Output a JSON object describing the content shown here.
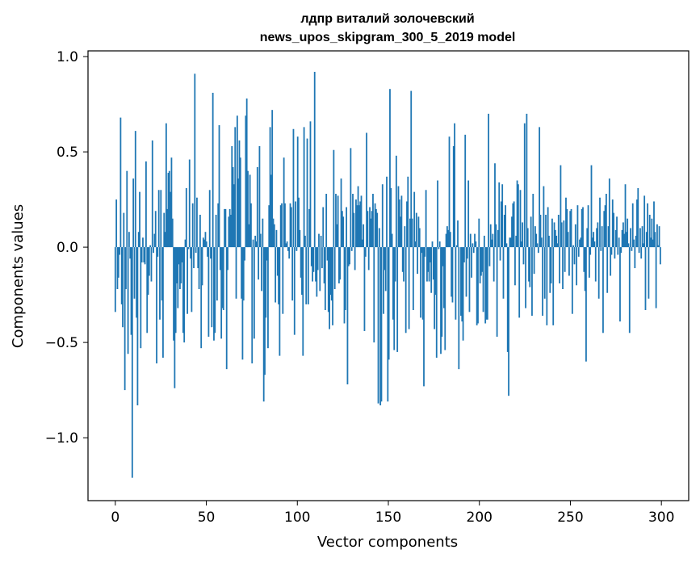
{
  "chart_data": {
    "type": "bar",
    "title_line1": "лдпр виталий золочевский",
    "title_line2": "news_upos_skipgram_300_5_2019 model",
    "xlabel": "Vector components",
    "ylabel": "Components values",
    "xlim": [
      -15,
      315
    ],
    "ylim": [
      -1.33,
      1.03
    ],
    "xticks": [
      0,
      50,
      100,
      150,
      200,
      250,
      300
    ],
    "xtick_labels": [
      "0",
      "50",
      "100",
      "150",
      "200",
      "250",
      "300"
    ],
    "yticks": [
      1.0,
      0.5,
      0.0,
      -0.5,
      -1.0
    ],
    "ytick_labels": [
      "1.0",
      "0.5",
      "0.0",
      "−0.5",
      "−1.0"
    ],
    "bar_color": "#1f77b4",
    "grid": false,
    "values": [
      -0.34,
      0.25,
      -0.22,
      -0.16,
      -0.04,
      0.68,
      -0.3,
      -0.42,
      0.18,
      -0.75,
      -0.22,
      0.4,
      -0.56,
      0.08,
      -0.06,
      -0.46,
      -1.21,
      0.36,
      -0.27,
      0.61,
      -0.37,
      -0.83,
      0.08,
      0.29,
      -0.53,
      -0.08,
      0.05,
      -0.08,
      -0.09,
      0.45,
      -0.45,
      -0.25,
      -0.15,
      0.01,
      -0.18,
      0.56,
      -0.03,
      0.07,
      0.19,
      -0.61,
      -0.05,
      0.3,
      -0.38,
      0.3,
      -0.28,
      -0.58,
      0.18,
      0.08,
      0.65,
      0.2,
      0.39,
      0.4,
      0.29,
      0.47,
      0.15,
      -0.49,
      -0.74,
      -0.45,
      -0.19,
      -0.32,
      -0.09,
      -0.22,
      -0.19,
      -0.08,
      -0.45,
      -0.5,
      0.04,
      0.31,
      -0.35,
      -0.01,
      0.46,
      -0.06,
      -0.34,
      0.23,
      -0.11,
      0.91,
      -0.03,
      0.26,
      -0.11,
      -0.22,
      0.17,
      -0.53,
      -0.2,
      0.05,
      0.04,
      0.08,
      0.03,
      -0.05,
      -0.47,
      0.3,
      -0.06,
      -0.42,
      0.81,
      -0.49,
      -0.45,
      0.17,
      -0.28,
      0.23,
      0.64,
      -0.12,
      -0.48,
      -0.32,
      -0.33,
      0.2,
      0.2,
      -0.64,
      -0.12,
      0.16,
      0.2,
      0.17,
      0.53,
      0.42,
      0.33,
      0.63,
      -0.27,
      0.69,
      0.36,
      0.56,
      0.47,
      -0.27,
      -0.59,
      -0.28,
      -0.07,
      0.69,
      0.78,
      0.4,
      0.12,
      0.38,
      0.23,
      -0.61,
      0.04,
      -0.48,
      0.06,
      0.03,
      0.42,
      -0.17,
      0.53,
      0.07,
      -0.23,
      0.15,
      -0.81,
      -0.67,
      -0.37,
      -0.07,
      -0.53,
      0.22,
      0.63,
      0.38,
      0.72,
      0.15,
      0.12,
      -0.29,
      0.09,
      -0.15,
      -0.3,
      -0.57,
      0.22,
      0.23,
      -0.35,
      0.47,
      0.23,
      0.02,
      0.03,
      -0.02,
      -0.06,
      0.23,
      0.21,
      -0.28,
      0.62,
      -0.46,
      0.24,
      -0.02,
      0.58,
      0.26,
      0.09,
      -0.16,
      -0.25,
      -0.57,
      0.63,
      0.06,
      -0.3,
      0.57,
      -0.3,
      0.2,
      0.66,
      -0.1,
      -0.18,
      -0.13,
      0.92,
      -0.18,
      -0.26,
      -0.12,
      0.07,
      -0.23,
      0.06,
      -0.11,
      0.21,
      -0.19,
      -0.33,
      0.28,
      -0.07,
      -0.34,
      -0.43,
      -0.25,
      -0.28,
      -0.41,
      0.51,
      -0.22,
      0.28,
      0.12,
      0.27,
      -0.19,
      -0.17,
      0.36,
      0.19,
      0.16,
      -0.4,
      -0.33,
      0.21,
      -0.72,
      -0.1,
      -0.09,
      0.52,
      -0.02,
      0.28,
      0.18,
      -0.12,
      0.25,
      0.22,
      0.32,
      0.22,
      0.24,
      0.27,
      0.04,
      0.12,
      -0.44,
      -0.05,
      0.6,
      0.19,
      -0.12,
      0.21,
      0.15,
      0.19,
      0.28,
      -0.5,
      0.23,
      0.2,
      0.18,
      -0.82,
      0.1,
      -0.83,
      -0.81,
      0.33,
      -0.35,
      -0.12,
      -0.23,
      0.37,
      -0.81,
      -0.59,
      0.83,
      0.31,
      0.07,
      -0.38,
      -0.54,
      -0.18,
      0.48,
      -0.55,
      0.32,
      0.25,
      0.16,
      0.27,
      -0.13,
      -0.18,
      0.11,
      -0.45,
      0.24,
      0.37,
      -0.43,
      0.15,
      0.82,
      0.15,
      -0.33,
      0.29,
      0.03,
      0.18,
      -0.14,
      0.16,
      0.1,
      -0.37,
      -0.03,
      -0.38,
      -0.73,
      -0.05,
      0.3,
      -0.18,
      -0.13,
      -0.18,
      -0.08,
      -0.24,
      0.03,
      -0.17,
      -0.43,
      -0.25,
      -0.58,
      0.35,
      -0.01,
      0.03,
      -0.56,
      -0.47,
      -0.1,
      -0.32,
      -0.54,
      0.07,
      0.11,
      0.09,
      0.58,
      0.08,
      -0.26,
      -0.29,
      0.53,
      0.65,
      -0.38,
      0.01,
      0.14,
      -0.64,
      0.0,
      -0.36,
      -0.39,
      -0.49,
      -0.08,
      0.59,
      -0.26,
      -0.06,
      0.35,
      -0.34,
      0.07,
      -0.16,
      0.02,
      -0.03,
      0.07,
      0.03,
      -0.41,
      -0.4,
      0.15,
      -0.19,
      -0.15,
      -0.13,
      -0.34,
      0.06,
      -0.4,
      -0.38,
      -0.38,
      0.7,
      -0.1,
      0.12,
      0.04,
      0.07,
      -0.18,
      0.44,
      0.12,
      -0.47,
      0.09,
      0.34,
      -0.07,
      0.24,
      0.33,
      -0.27,
      0.17,
      0.22,
      0.02,
      -0.55,
      -0.78,
      0.05,
      0.05,
      0.16,
      0.23,
      0.24,
      -0.2,
      0.06,
      0.35,
      0.33,
      -0.37,
      0.3,
      0.03,
      0.13,
      -0.09,
      0.65,
      -0.32,
      0.7,
      0.1,
      -0.18,
      -0.21,
      0.16,
      -0.36,
      0.28,
      -0.14,
      0.11,
      0.07,
      0.02,
      -0.03,
      0.63,
      0.17,
      0.05,
      -0.36,
      0.32,
      -0.27,
      0.17,
      -0.41,
      0.21,
      0.06,
      -0.24,
      -0.19,
      0.15,
      -0.41,
      0.13,
      0.09,
      0.06,
      0.02,
      0.17,
      -0.19,
      0.43,
      0.13,
      -0.22,
      0.14,
      -0.13,
      0.26,
      0.2,
      0.08,
      -0.15,
      0.19,
      0.2,
      -0.35,
      0.01,
      -0.09,
      0.12,
      -0.2,
      0.22,
      -0.05,
      0.04,
      0.05,
      0.2,
      0.21,
      -0.13,
      -0.23,
      -0.6,
      0.1,
      0.22,
      -0.16,
      -0.04,
      0.43,
      0.05,
      0.08,
      0.03,
      -0.18,
      0.1,
      0.13,
      -0.27,
      0.26,
      -0.02,
      0.11,
      -0.45,
      0.19,
      0.22,
      0.28,
      -0.24,
      0.11,
      0.36,
      -0.15,
      -0.04,
      0.25,
      0.18,
      -0.06,
      0.09,
      0.16,
      -0.04,
      0.05,
      -0.39,
      -0.03,
      0.09,
      0.13,
      0.07,
      0.33,
      0.08,
      0.15,
      0.02,
      -0.45,
      0.1,
      -0.02,
      0.23,
      0.04,
      -0.11,
      0.06,
      0.25,
      0.31,
      -0.03,
      0.1,
      -0.06,
      0.11,
      0.02,
      0.27,
      -0.33,
      0.08,
      0.23,
      -0.27,
      0.17,
      0.05,
      0.15,
      0.04,
      0.24,
      0.08,
      -0.32,
      0.12,
      0.01,
      0.11,
      -0.09
    ]
  }
}
